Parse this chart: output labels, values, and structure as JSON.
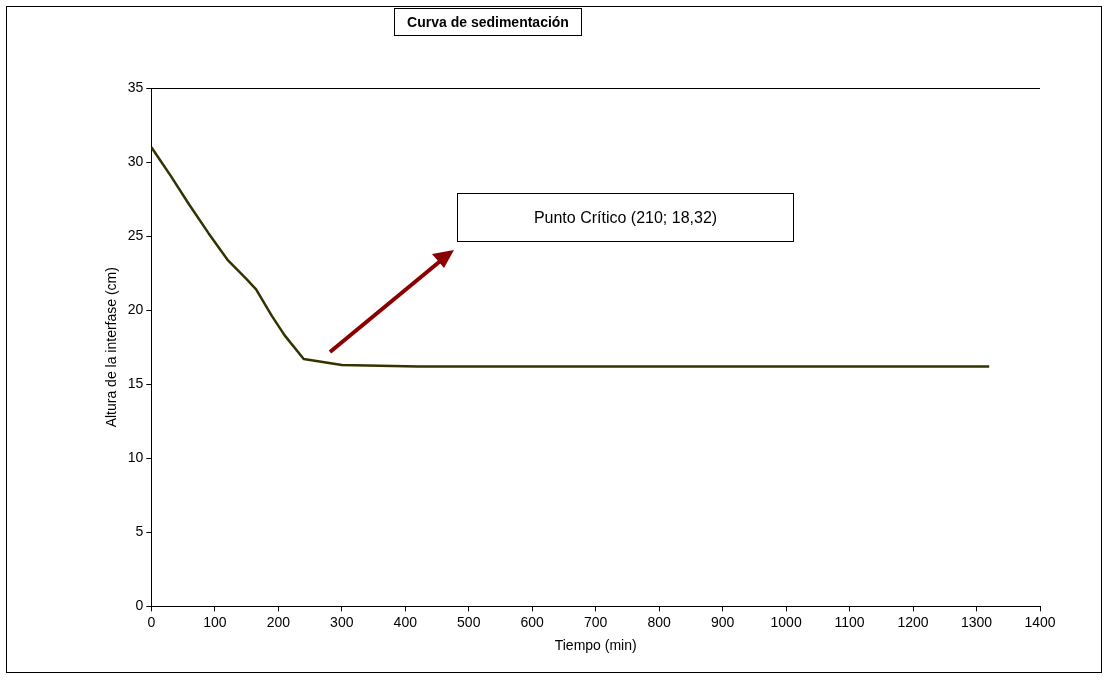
{
  "chart_data": {
    "type": "line",
    "title": "Curva de sedimentación",
    "xlabel": "Tiempo (min)",
    "ylabel": "Altura de la interfase (cm)",
    "x": [
      0,
      30,
      60,
      90,
      120,
      150,
      165,
      190,
      210,
      240,
      300,
      420,
      600,
      900,
      1320
    ],
    "series": [
      {
        "color": "#333300",
        "values": [
          31,
          29.1,
          27.1,
          25.2,
          23.4,
          22.1,
          21.4,
          19.6,
          18.3,
          16.7,
          16.3,
          16.2,
          16.2,
          16.2,
          16.2
        ]
      }
    ],
    "xlim": [
      0,
      1400
    ],
    "xticks": [
      0,
      100,
      200,
      300,
      400,
      500,
      600,
      700,
      800,
      900,
      1000,
      1100,
      1200,
      1300,
      1400
    ],
    "ylim": [
      0,
      35
    ],
    "yticks": [
      0,
      5,
      10,
      15,
      20,
      25,
      30,
      35
    ],
    "legend": false,
    "marker": "none",
    "line_style": "solid",
    "annotations": [
      "Punto Crítico (210; 18,32)"
    ]
  }
}
